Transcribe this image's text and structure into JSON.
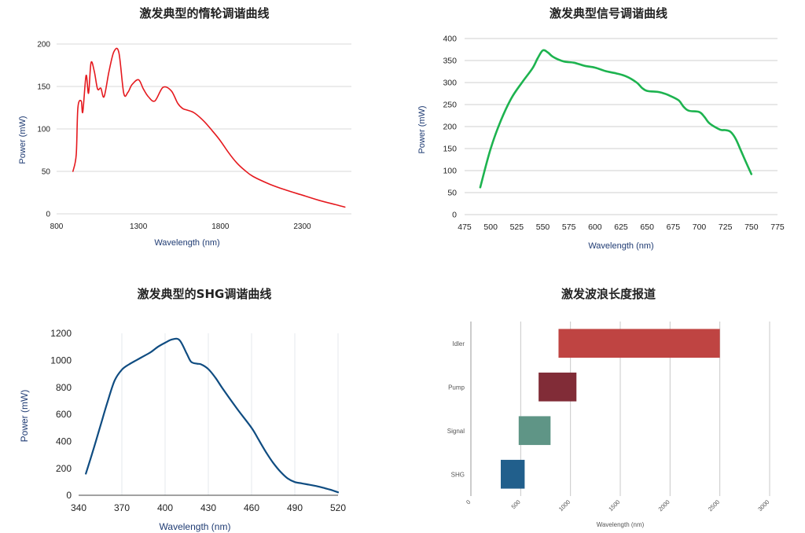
{
  "chart_data": [
    {
      "type": "line",
      "title": "激发典型的惰轮调谐曲线",
      "xlabel": "Wavelength (nm)",
      "ylabel": "Power (mW)",
      "xlim": [
        800,
        2600
      ],
      "ylim": [
        0,
        200
      ],
      "xticks": [
        800,
        1300,
        1800,
        2300
      ],
      "yticks": [
        0,
        50,
        100,
        150,
        200
      ],
      "grid": "horizontal",
      "color": "#e5191e",
      "series": [
        {
          "x": [
            900,
            920,
            930,
            950,
            960,
            980,
            995,
            1010,
            1030,
            1050,
            1070,
            1090,
            1120,
            1150,
            1180,
            1210,
            1235,
            1260,
            1300,
            1330,
            1360,
            1400,
            1450,
            1500,
            1540,
            1570,
            1600,
            1640,
            1700,
            1750,
            1800,
            1850,
            1900,
            1950,
            2000,
            2100,
            2200,
            2300,
            2400,
            2500,
            2560
          ],
          "y": [
            50,
            70,
            125,
            133,
            120,
            163,
            142,
            178,
            168,
            147,
            148,
            138,
            168,
            191,
            190,
            142,
            143,
            152,
            158,
            147,
            138,
            133,
            149,
            145,
            130,
            124,
            122,
            119,
            109,
            98,
            86,
            72,
            60,
            51,
            44,
            35,
            28,
            22,
            16,
            11,
            8
          ]
        }
      ]
    },
    {
      "type": "line",
      "title": "激发典型信号调谐曲线",
      "xlabel": "Wavelength (nm)",
      "ylabel": "Power (mW)",
      "xlim": [
        475,
        775
      ],
      "ylim": [
        0,
        400
      ],
      "xticks": [
        475,
        500,
        525,
        550,
        575,
        600,
        625,
        650,
        675,
        700,
        725,
        750,
        775
      ],
      "yticks": [
        0,
        50,
        100,
        150,
        200,
        250,
        300,
        350,
        400
      ],
      "grid": "horizontal",
      "color": "#1db34f",
      "series": [
        {
          "x": [
            490,
            500,
            510,
            520,
            530,
            540,
            545,
            550,
            555,
            560,
            570,
            580,
            590,
            600,
            610,
            620,
            630,
            640,
            645,
            650,
            660,
            665,
            670,
            680,
            685,
            690,
            700,
            705,
            710,
            720,
            725,
            730,
            735,
            740,
            745,
            750
          ],
          "y": [
            62,
            150,
            215,
            265,
            300,
            332,
            355,
            373,
            368,
            358,
            348,
            345,
            338,
            334,
            326,
            321,
            314,
            300,
            288,
            281,
            279,
            276,
            272,
            260,
            245,
            236,
            233,
            222,
            207,
            193,
            192,
            188,
            172,
            145,
            118,
            92
          ]
        }
      ]
    },
    {
      "type": "line",
      "title": "激发典型的SHG调谐曲线",
      "xlabel": "Wavelength (nm)",
      "ylabel": "Power (mW)",
      "xlim": [
        340,
        520
      ],
      "ylim": [
        0,
        1200
      ],
      "xticks": [
        340,
        370,
        400,
        430,
        460,
        490,
        520
      ],
      "yticks": [
        0,
        200,
        400,
        600,
        800,
        1000,
        1200
      ],
      "grid": "vertical",
      "color": "#0f4c81",
      "series": [
        {
          "x": [
            345,
            350,
            355,
            360,
            365,
            370,
            375,
            380,
            385,
            390,
            395,
            400,
            405,
            410,
            415,
            418,
            422,
            425,
            430,
            435,
            440,
            450,
            460,
            465,
            470,
            475,
            480,
            485,
            490,
            495,
            500,
            505,
            510,
            515,
            520
          ],
          "y": [
            160,
            330,
            510,
            690,
            850,
            930,
            970,
            1000,
            1030,
            1060,
            1100,
            1130,
            1155,
            1150,
            1050,
            990,
            975,
            970,
            935,
            870,
            790,
            640,
            500,
            410,
            320,
            240,
            175,
            125,
            98,
            88,
            78,
            68,
            55,
            40,
            22
          ]
        }
      ]
    },
    {
      "type": "bar",
      "orientation": "horizontal-range",
      "title": "激发波浪长度报道",
      "xlabel": "Wavelength (nm)",
      "xlim": [
        0,
        3000
      ],
      "xticks": [
        0,
        500,
        1000,
        1500,
        2000,
        2500,
        3000
      ],
      "grid": "vertical",
      "categories": [
        "Idler",
        "Pump",
        "Signal",
        "SHG"
      ],
      "ranges": [
        [
          880,
          2500
        ],
        [
          680,
          1060
        ],
        [
          480,
          800
        ],
        [
          300,
          540
        ]
      ],
      "colors": [
        "#bf4442",
        "#812c37",
        "#5f9586",
        "#215f8c"
      ]
    }
  ]
}
